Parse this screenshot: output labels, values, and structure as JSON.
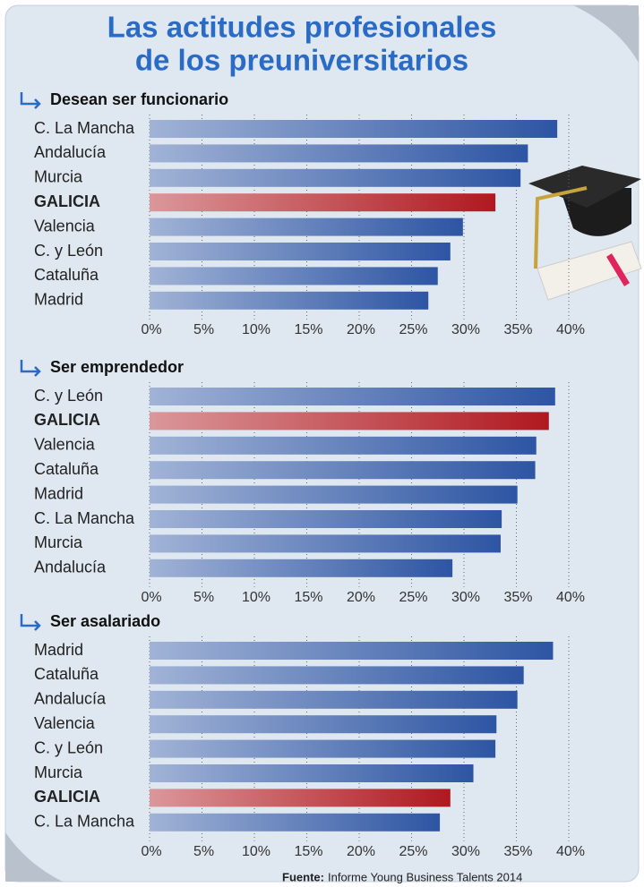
{
  "header": {
    "title": [
      "Las actitudes profesionales",
      "de los preuniversitarios"
    ]
  },
  "source": {
    "label": "Fuente:",
    "text": "Informe Young Business Talents 2014"
  },
  "chart_data": [
    {
      "type": "bar",
      "orientation": "horizontal",
      "title": "Desean ser funcionario",
      "categories": [
        "C. La Mancha",
        "Andalucía",
        "Murcia",
        "GALICIA",
        "Valencia",
        "C. y León",
        "Cataluña",
        "Madrid"
      ],
      "values": [
        38.9,
        36.1,
        35.4,
        33.0,
        29.9,
        28.7,
        27.5,
        26.6
      ],
      "color": "#2d55a3",
      "colors": [
        "#2d55a3",
        "#2d55a3",
        "#2d55a3",
        "#b0181f",
        "#2d55a3",
        "#2d55a3",
        "#2d55a3",
        "#2d55a3"
      ],
      "xlim": [
        0,
        40
      ],
      "xticks": [
        {
          "value": 0,
          "label": "0%"
        },
        {
          "value": 5,
          "label": "5%"
        },
        {
          "value": 10,
          "label": "10%"
        },
        {
          "value": 15,
          "label": "15%"
        },
        {
          "value": 20,
          "label": "20%"
        },
        {
          "value": 25,
          "label": "25%"
        },
        {
          "value": 30,
          "label": "30%"
        },
        {
          "value": 35,
          "label": "35%"
        },
        {
          "value": 40,
          "label": "40%"
        }
      ],
      "grid": true
    },
    {
      "type": "bar",
      "orientation": "horizontal",
      "title": "Ser emprendedor",
      "categories": [
        "C. y León",
        "GALICIA",
        "Valencia",
        "Cataluña",
        "Madrid",
        "C. La Mancha",
        "Murcia",
        "Andalucía"
      ],
      "values": [
        38.7,
        38.1,
        36.9,
        36.8,
        35.1,
        33.6,
        33.5,
        28.9
      ],
      "color": "#2d55a3",
      "colors": [
        "#2d55a3",
        "#b0181f",
        "#2d55a3",
        "#2d55a3",
        "#2d55a3",
        "#2d55a3",
        "#2d55a3",
        "#2d55a3"
      ],
      "xlim": [
        0,
        40
      ],
      "xticks": [
        {
          "value": 0,
          "label": "0%"
        },
        {
          "value": 5,
          "label": "5%"
        },
        {
          "value": 10,
          "label": "10%"
        },
        {
          "value": 15,
          "label": "15%"
        },
        {
          "value": 20,
          "label": "20%"
        },
        {
          "value": 25,
          "label": "25%"
        },
        {
          "value": 30,
          "label": "30%"
        },
        {
          "value": 35,
          "label": "35%"
        },
        {
          "value": 40,
          "label": "40%"
        }
      ],
      "grid": true
    },
    {
      "type": "bar",
      "orientation": "horizontal",
      "title": "Ser asalariado",
      "categories": [
        "Madrid",
        "Cataluña",
        "Andalucía",
        "Valencia",
        "C. y León",
        "Murcia",
        "GALICIA",
        "C. La Mancha"
      ],
      "values": [
        38.5,
        35.7,
        35.1,
        33.1,
        33.0,
        30.9,
        28.7,
        27.7
      ],
      "color": "#2d55a3",
      "colors": [
        "#2d55a3",
        "#2d55a3",
        "#2d55a3",
        "#2d55a3",
        "#2d55a3",
        "#2d55a3",
        "#b0181f",
        "#2d55a3"
      ],
      "xlim": [
        0,
        40
      ],
      "xticks": [
        {
          "value": 0,
          "label": "0%"
        },
        {
          "value": 5,
          "label": "5%"
        },
        {
          "value": 10,
          "label": "10%"
        },
        {
          "value": 15,
          "label": "15%"
        },
        {
          "value": 20,
          "label": "20%"
        },
        {
          "value": 25,
          "label": "25%"
        },
        {
          "value": 30,
          "label": "30%"
        },
        {
          "value": 35,
          "label": "35%"
        },
        {
          "value": 40,
          "label": "40%"
        }
      ],
      "grid": true
    }
  ]
}
